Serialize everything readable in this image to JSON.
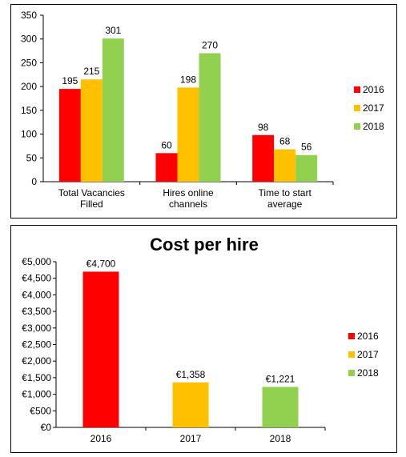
{
  "colors": {
    "2016": "#ff0000",
    "2017": "#ffc000",
    "2018": "#92d050"
  },
  "chart_data": [
    {
      "type": "bar",
      "title": "",
      "categories": [
        "Total Vacancies\nFilled",
        "Hires online\nchannels",
        "Time to start\naverage"
      ],
      "series": [
        {
          "name": "2016",
          "values": [
            195,
            60,
            98
          ]
        },
        {
          "name": "2017",
          "values": [
            215,
            198,
            68
          ]
        },
        {
          "name": "2018",
          "values": [
            301,
            270,
            56
          ]
        }
      ],
      "ylim": [
        0,
        350
      ],
      "yticks": [
        "0",
        "50",
        "100",
        "150",
        "200",
        "250",
        "300",
        "350"
      ],
      "legend": "right",
      "grid": false
    },
    {
      "type": "bar",
      "title": "Cost per hire",
      "categories": [
        "2016",
        "2017",
        "2018"
      ],
      "values": [
        4700,
        1358,
        1221
      ],
      "value_labels": [
        "€4,700",
        "€1,358",
        "€1,221"
      ],
      "legend_entries": [
        "2016",
        "2017",
        "2018"
      ],
      "ylim": [
        0,
        5000
      ],
      "yticks": [
        "€0",
        "€500",
        "€1,000",
        "€1,500",
        "€2,000",
        "€2,500",
        "€3,000",
        "€3,500",
        "€4,000",
        "€4,500",
        "€5,000"
      ],
      "legend": "right",
      "grid": false
    }
  ]
}
